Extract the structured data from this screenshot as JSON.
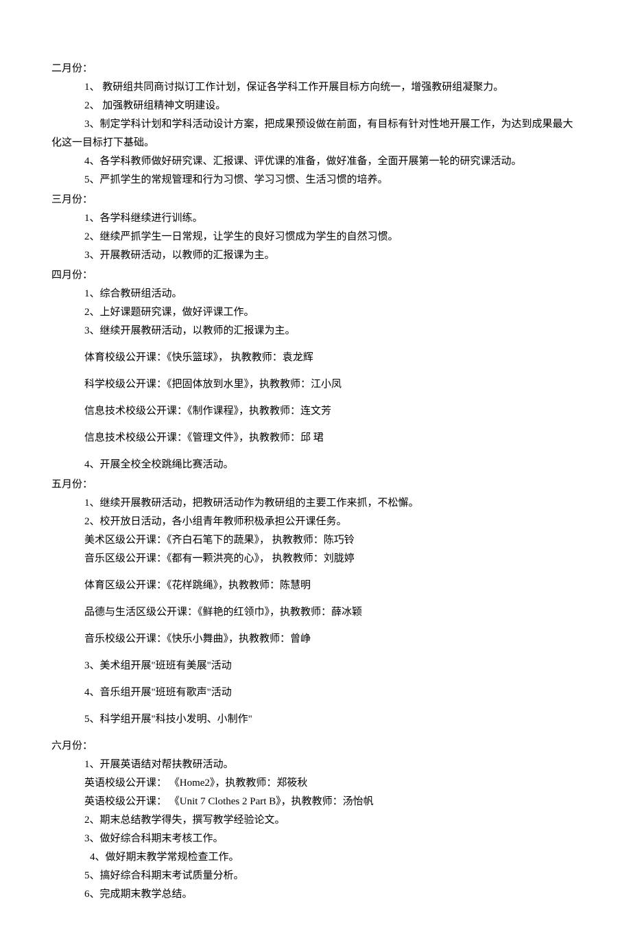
{
  "february": {
    "header": "二月份：",
    "items": [
      "1、 教研组共同商讨拟订工作计划，保证各学科工作开展目标方向统一，增强教研组凝聚力。",
      "2、 加强教研组精神文明建设。",
      "3、制定学科计划和学科活动设计方案，把成果预设做在前面，有目标有针对性地开展工作，为达到成果最大化这一目标打下基础。",
      "4、各学科教师做好研究课、汇报课、评优课的准备，做好准备，全面开展第一轮的研究课活动。",
      "5、严抓学生的常规管理和行为习惯、学习习惯、生活习惯的培养。"
    ]
  },
  "march": {
    "header": "三月份：",
    "items": [
      "1、各学科继续进行训练。",
      "2、继续严抓学生一日常规，让学生的良好习惯成为学生的自然习惯。",
      "3、开展教研活动，以教师的汇报课为主。"
    ]
  },
  "april": {
    "header": "四月份：",
    "items": [
      "1、综合教研组活动。",
      "2、上好课题研究课，做好评课工作。",
      "3、继续开展教研活动，以教师的汇报课为主。"
    ],
    "courses": [
      "体育校级公开课：《快乐篮球》， 执教教师：袁龙辉",
      "科学校级公开课：《把固体放到水里》，执教教师：江小凤",
      "信息技术校级公开课：《制作课程》，执教教师：连文芳",
      "信息技术校级公开课：《管理文件》，执教教师：邱  珺"
    ],
    "item4": "4、开展全校全校跳绳比赛活动。"
  },
  "may": {
    "header": "五月份：",
    "items_top": [
      "1、继续开展教研活动，把教研活动作为教研组的主要工作来抓，不松懈。",
      "2、校开放日活动，各小组青年教师积极承担公开课任务。"
    ],
    "courses_a": [
      "美术区级公开课：《齐白石笔下的蔬果》， 执教教师：陈巧铃",
      "音乐区级公开课：《都有一颗洪亮的心》， 执教教师：刘胧婷"
    ],
    "courses_b": [
      "体育区级公开课：《花样跳绳》，执教教师：陈慧明",
      "品德与生活区级公开课：《鲜艳的红领巾》，执教教师：薛冰颖",
      "音乐校级公开课：《快乐小舞曲》，执教教师：曾峥"
    ],
    "items_bottom": [
      "3、美术组开展\"班班有美展\"活动",
      "4、音乐组开展\"班班有歌声\"活动",
      "5、科学组开展\"科技小发明、小制作\""
    ]
  },
  "june": {
    "header": "六月份：",
    "item1": "1、开展英语结对帮扶教研活动。",
    "courses": [
      "英语校级公开课： 《Home2》，执教教师：郑筱秋",
      "英语校级公开课： 《Unit 7  Clothes 2 Part B》，执教教师：汤怡帆"
    ],
    "items_rest": [
      "2、期末总结教学得失，撰写教学经验论文。",
      "3、做好综合科期末考核工作。"
    ],
    "item4": "4、做好期末教学常规检查工作。",
    "items_last": [
      "5、搞好综合科期末考试质量分析。",
      "6、完成期末教学总结。"
    ]
  }
}
